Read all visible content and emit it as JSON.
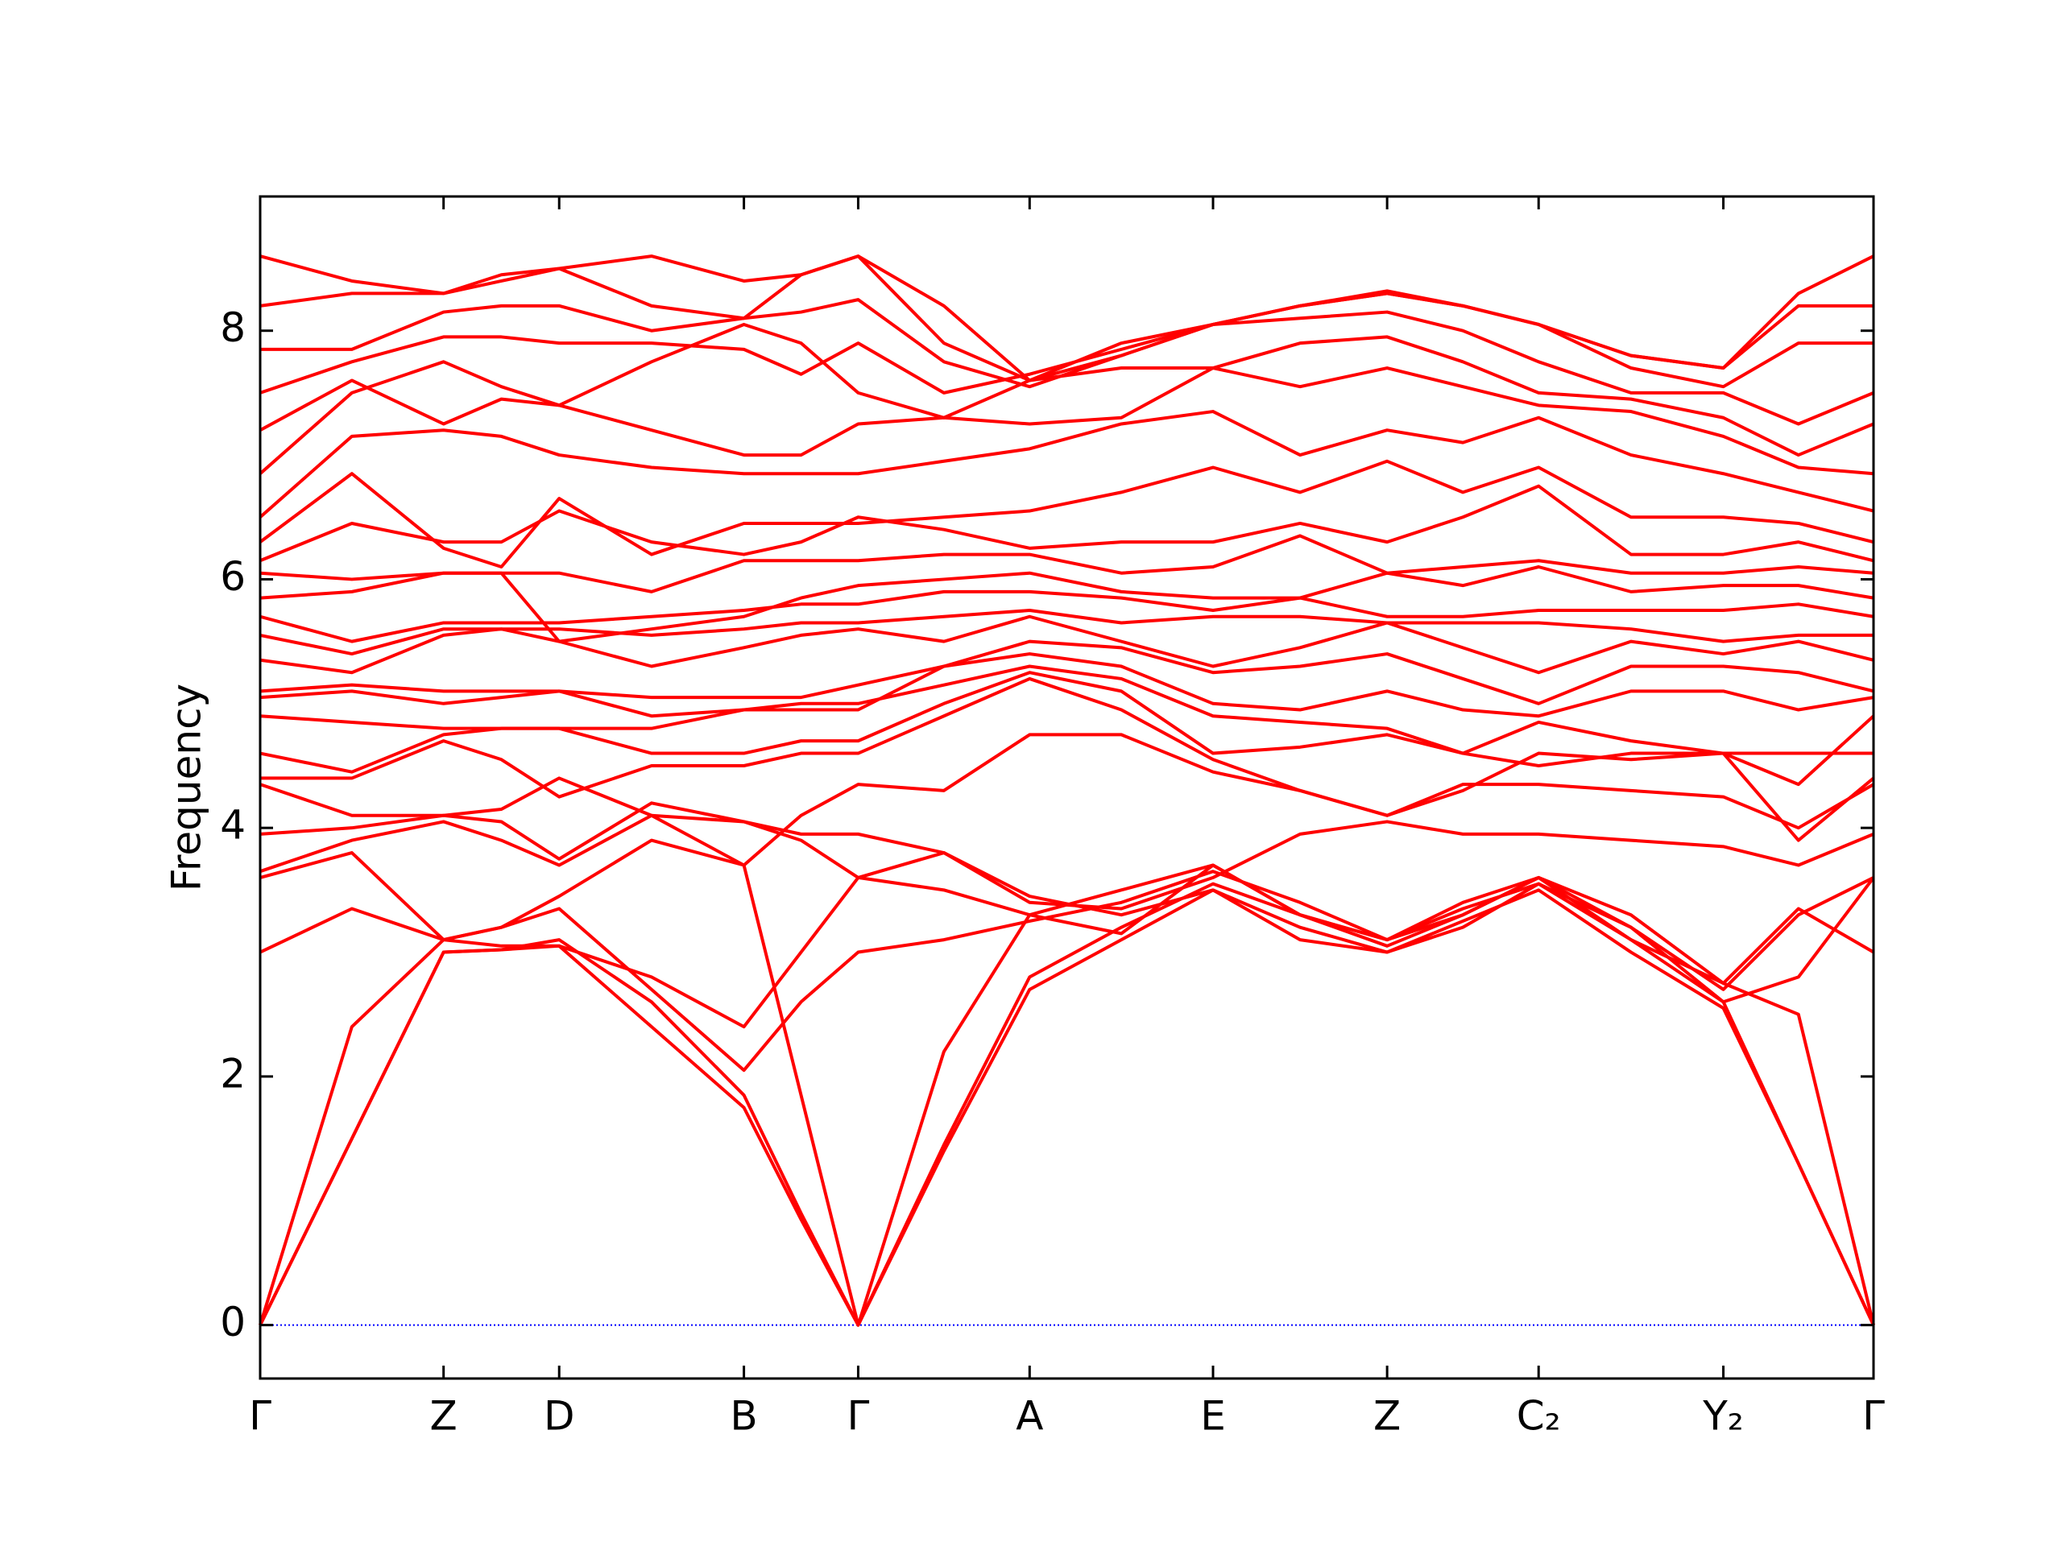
{
  "chart_data": {
    "type": "line",
    "ylabel": "Frequency",
    "color": "#ff0000",
    "x": [
      0,
      0.69,
      1.38,
      1.815,
      2.25,
      2.945,
      3.64,
      4.07,
      4.5,
      5.145,
      5.79,
      6.48,
      7.17,
      7.825,
      8.48,
      9.05,
      9.62,
      10.315,
      11.01,
      11.575,
      12.14
    ],
    "xlim": [
      0,
      12.14
    ],
    "xticks": [
      {
        "value": 0,
        "label": "Γ"
      },
      {
        "value": 1.38,
        "label": "Z"
      },
      {
        "value": 2.25,
        "label": "D"
      },
      {
        "value": 3.64,
        "label": "B"
      },
      {
        "value": 4.5,
        "label": "Γ"
      },
      {
        "value": 5.79,
        "label": "A"
      },
      {
        "value": 7.17,
        "label": "E"
      },
      {
        "value": 8.48,
        "label": "Z"
      },
      {
        "value": 9.62,
        "label": "C₂"
      },
      {
        "value": 11.01,
        "label": "Y₂"
      },
      {
        "value": 12.14,
        "label": "Γ"
      }
    ],
    "ylim": [
      -0.43,
      9.08
    ],
    "yticks": [
      0,
      2,
      4,
      6,
      8
    ],
    "zero_line": {
      "y": 0,
      "color": "#0000ff"
    },
    "series": [
      {
        "values": [
          0,
          1.5,
          3.0,
          3.02,
          3.05,
          2.4,
          1.75,
          0.85,
          0,
          1.4,
          2.7,
          3.1,
          3.5,
          3.2,
          3.0,
          3.25,
          3.5,
          3.0,
          2.55,
          1.3,
          0
        ]
      },
      {
        "values": [
          0,
          1.5,
          3.0,
          3.02,
          3.1,
          2.6,
          1.85,
          0.9,
          0,
          1.45,
          2.8,
          3.2,
          3.55,
          3.3,
          3.1,
          3.35,
          3.55,
          3.1,
          2.6,
          1.3,
          0
        ]
      },
      {
        "values": [
          0,
          2.4,
          3.1,
          3.2,
          3.45,
          3.9,
          3.7,
          1.85,
          0,
          2.2,
          3.3,
          3.15,
          3.7,
          3.3,
          3.1,
          3.4,
          3.6,
          3.1,
          2.75,
          2.5,
          0
        ]
      },
      {
        "values": [
          3.0,
          3.35,
          3.1,
          3.2,
          3.35,
          2.7,
          2.05,
          2.6,
          3.0,
          3.1,
          3.25,
          3.4,
          3.65,
          3.4,
          3.1,
          3.3,
          3.6,
          3.3,
          2.75,
          3.35,
          3.0
        ]
      },
      {
        "values": [
          3.6,
          3.8,
          3.1,
          3.05,
          3.05,
          2.8,
          2.4,
          3.0,
          3.6,
          3.5,
          3.3,
          3.5,
          3.7,
          3.3,
          3.05,
          3.3,
          3.6,
          3.2,
          2.7,
          3.3,
          3.6
        ]
      },
      {
        "values": [
          3.65,
          3.9,
          4.05,
          3.9,
          3.7,
          4.1,
          4.05,
          3.9,
          3.6,
          3.8,
          3.45,
          3.3,
          3.5,
          3.1,
          3.0,
          3.2,
          3.55,
          3.2,
          2.6,
          2.8,
          3.6
        ]
      },
      {
        "values": [
          3.95,
          4.0,
          4.1,
          4.05,
          3.75,
          4.2,
          4.05,
          3.95,
          3.95,
          3.8,
          3.4,
          3.35,
          3.6,
          3.95,
          4.05,
          3.95,
          3.95,
          3.9,
          3.85,
          3.7,
          3.95
        ]
      },
      {
        "values": [
          4.35,
          4.1,
          4.1,
          4.15,
          4.4,
          4.1,
          3.7,
          4.1,
          4.35,
          4.3,
          4.75,
          4.75,
          4.45,
          4.3,
          4.1,
          4.35,
          4.35,
          4.3,
          4.25,
          4.0,
          4.35
        ]
      },
      {
        "values": [
          4.4,
          4.4,
          4.7,
          4.55,
          4.25,
          4.5,
          4.5,
          4.6,
          4.6,
          4.9,
          5.2,
          4.95,
          4.55,
          4.3,
          4.1,
          4.3,
          4.6,
          4.55,
          4.6,
          3.9,
          4.4
        ]
      },
      {
        "values": [
          4.6,
          4.45,
          4.75,
          4.8,
          4.8,
          4.6,
          4.6,
          4.7,
          4.7,
          5.0,
          5.25,
          5.1,
          4.6,
          4.65,
          4.75,
          4.6,
          4.85,
          4.7,
          4.6,
          4.6,
          4.6
        ]
      },
      {
        "values": [
          4.9,
          4.85,
          4.8,
          4.8,
          4.8,
          4.8,
          4.95,
          5.0,
          5.0,
          5.15,
          5.3,
          5.2,
          4.9,
          4.85,
          4.8,
          4.6,
          4.5,
          4.6,
          4.6,
          4.35,
          4.9
        ]
      },
      {
        "values": [
          5.05,
          5.1,
          5.0,
          5.05,
          5.1,
          4.9,
          4.95,
          4.95,
          4.95,
          5.3,
          5.4,
          5.3,
          5.0,
          4.95,
          5.1,
          4.95,
          4.9,
          5.1,
          5.1,
          4.95,
          5.05
        ]
      },
      {
        "values": [
          5.1,
          5.15,
          5.1,
          5.1,
          5.1,
          5.05,
          5.05,
          5.05,
          5.15,
          5.3,
          5.5,
          5.45,
          5.25,
          5.3,
          5.4,
          5.2,
          5.0,
          5.3,
          5.3,
          5.25,
          5.1
        ]
      },
      {
        "values": [
          5.35,
          5.25,
          5.55,
          5.6,
          5.5,
          5.3,
          5.45,
          5.55,
          5.6,
          5.5,
          5.7,
          5.5,
          5.3,
          5.45,
          5.65,
          5.45,
          5.25,
          5.5,
          5.4,
          5.5,
          5.35
        ]
      },
      {
        "values": [
          5.55,
          5.4,
          5.6,
          5.6,
          5.6,
          5.55,
          5.6,
          5.65,
          5.65,
          5.7,
          5.75,
          5.65,
          5.7,
          5.7,
          5.65,
          5.65,
          5.65,
          5.6,
          5.5,
          5.55,
          5.55
        ]
      },
      {
        "values": [
          5.7,
          5.5,
          5.65,
          5.65,
          5.65,
          5.7,
          5.75,
          5.8,
          5.8,
          5.9,
          5.9,
          5.85,
          5.75,
          5.85,
          5.7,
          5.7,
          5.75,
          5.75,
          5.75,
          5.8,
          5.7
        ]
      },
      {
        "values": [
          5.85,
          5.9,
          6.05,
          6.05,
          5.5,
          5.6,
          5.7,
          5.85,
          5.95,
          6.0,
          6.05,
          5.9,
          5.85,
          5.85,
          6.05,
          5.95,
          6.1,
          5.9,
          5.95,
          5.95,
          5.85
        ]
      },
      {
        "values": [
          6.05,
          6.0,
          6.05,
          6.05,
          6.05,
          5.9,
          6.15,
          6.15,
          6.15,
          6.2,
          6.2,
          6.05,
          6.1,
          6.35,
          6.05,
          6.1,
          6.15,
          6.05,
          6.05,
          6.1,
          6.05
        ]
      },
      {
        "values": [
          6.15,
          6.45,
          6.3,
          6.3,
          6.55,
          6.3,
          6.2,
          6.3,
          6.5,
          6.4,
          6.25,
          6.3,
          6.3,
          6.45,
          6.3,
          6.5,
          6.75,
          6.2,
          6.2,
          6.3,
          6.15
        ]
      },
      {
        "values": [
          6.3,
          6.85,
          6.25,
          6.1,
          6.65,
          6.2,
          6.45,
          6.45,
          6.45,
          6.5,
          6.55,
          6.7,
          6.9,
          6.7,
          6.95,
          6.7,
          6.9,
          6.5,
          6.5,
          6.45,
          6.3
        ]
      },
      {
        "values": [
          6.5,
          7.15,
          7.2,
          7.15,
          7.0,
          6.9,
          6.85,
          6.85,
          6.85,
          6.95,
          7.05,
          7.25,
          7.35,
          7.0,
          7.2,
          7.1,
          7.3,
          7.0,
          6.85,
          6.7,
          6.55
        ]
      },
      {
        "values": [
          6.85,
          7.5,
          7.75,
          7.55,
          7.4,
          7.2,
          7.0,
          7.0,
          7.25,
          7.3,
          7.25,
          7.3,
          7.7,
          7.55,
          7.7,
          7.55,
          7.4,
          7.35,
          7.15,
          6.9,
          6.85
        ]
      },
      {
        "values": [
          7.2,
          7.6,
          7.25,
          7.45,
          7.4,
          7.75,
          8.05,
          7.9,
          7.5,
          7.3,
          7.6,
          7.7,
          7.7,
          7.9,
          7.95,
          7.75,
          7.5,
          7.45,
          7.3,
          7.0,
          7.25
        ]
      },
      {
        "values": [
          7.5,
          7.75,
          7.95,
          7.95,
          7.9,
          7.9,
          7.85,
          7.65,
          7.9,
          7.5,
          7.65,
          7.85,
          8.05,
          8.1,
          8.15,
          8.0,
          7.75,
          7.5,
          7.5,
          7.25,
          7.5
        ]
      },
      {
        "values": [
          7.85,
          7.85,
          8.15,
          8.2,
          8.2,
          8.0,
          8.1,
          8.15,
          8.25,
          7.75,
          7.55,
          7.8,
          8.05,
          8.2,
          8.3,
          8.2,
          8.05,
          7.7,
          7.55,
          7.9,
          7.9
        ]
      },
      {
        "values": [
          8.2,
          8.3,
          8.3,
          8.4,
          8.5,
          8.2,
          8.1,
          8.45,
          8.6,
          7.9,
          7.6,
          7.8,
          8.05,
          8.2,
          8.3,
          8.2,
          8.05,
          7.8,
          7.7,
          8.2,
          8.2
        ]
      },
      {
        "values": [
          8.6,
          8.4,
          8.3,
          8.45,
          8.5,
          8.6,
          8.4,
          8.45,
          8.6,
          8.2,
          7.6,
          7.9,
          8.05,
          8.2,
          8.32,
          8.2,
          8.05,
          7.8,
          7.7,
          8.3,
          8.6
        ]
      }
    ]
  }
}
